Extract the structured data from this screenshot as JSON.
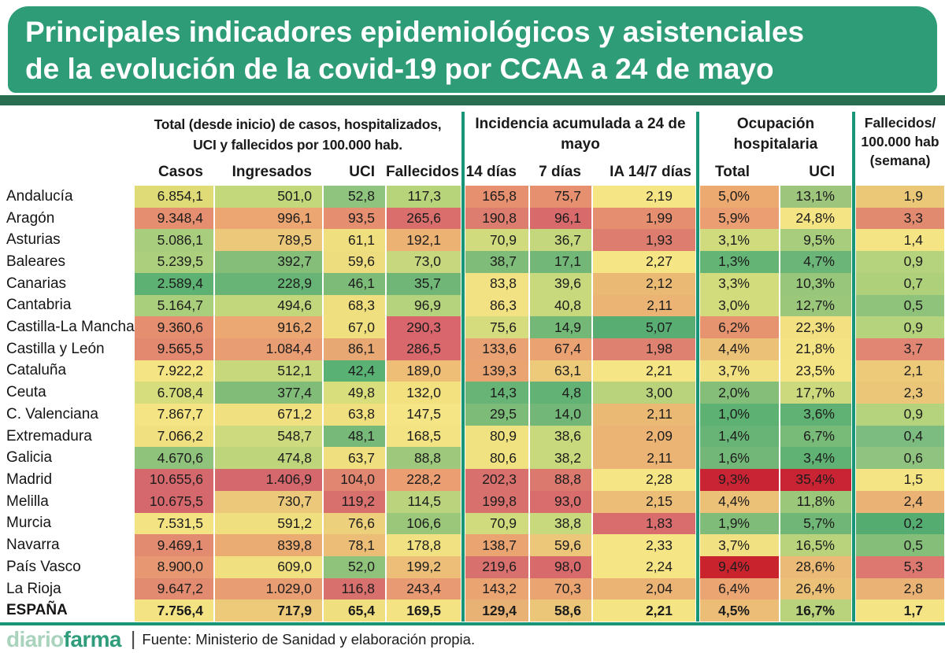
{
  "title": {
    "line1": "Principales indicadores epidemiológicos y asistenciales",
    "line2": "de la evolución de la covid-19 por CCAA a 24 de mayo"
  },
  "colors": {
    "banner": "#2f9c78",
    "stripe": "#2a6e52",
    "divider": "#189476",
    "heat_red": "#c92434",
    "heat_yellow": "#f5e584",
    "heat_green": "#5db173"
  },
  "chart_data": {
    "type": "table",
    "title": "Principales indicadores epidemiológicos y asistenciales de la evolución de la covid-19 por CCAA a 24 de mayo",
    "legend_note": "heatmap cells colored red-yellow-green per column",
    "column_groups": [
      {
        "lines": [
          "Total (desde inicio) de casos, hospitalizados,",
          "UCI y fallecidos por 100.000 hab."
        ]
      },
      {
        "lines": [
          "Incidencia acumulada a 24 de",
          "mayo"
        ]
      },
      {
        "lines": [
          "Ocupación",
          "hospitalaria"
        ]
      },
      {
        "lines": [
          "Fallecidos/",
          "100.000 hab",
          "(semana)"
        ]
      }
    ],
    "columns": [
      "Casos",
      "Ingresados",
      "UCI",
      "Fallecidos",
      "14 días",
      "7 días",
      "IA 14/7 días",
      "Total",
      "UCI"
    ],
    "rows": [
      {
        "name": "Andalucía",
        "bold": false,
        "values": [
          "6.854,1",
          "501,0",
          "52,8",
          "117,3",
          "165,8",
          "75,7",
          "2,19",
          "5,0%",
          "13,1%",
          "1,9"
        ],
        "colors": [
          "#dfdc78",
          "#c3d87b",
          "#8ec47e",
          "#b8d47b",
          "#e69070",
          "#e69070",
          "#f5e584",
          "#edaa70",
          "#9dc57c",
          "#eac878"
        ]
      },
      {
        "name": "Aragón",
        "bold": false,
        "values": [
          "9.348,4",
          "996,1",
          "93,5",
          "265,6",
          "190,8",
          "96,1",
          "1,99",
          "5,9%",
          "24,8%",
          "3,3"
        ],
        "colors": [
          "#e58f70",
          "#eca672",
          "#e58f70",
          "#d96e6d",
          "#dd7d6f",
          "#d96a6c",
          "#e58f70",
          "#eb9e71",
          "#f4e484",
          "#e28a70"
        ]
      },
      {
        "name": "Asturias",
        "bold": false,
        "values": [
          "5.086,1",
          "789,5",
          "61,1",
          "192,1",
          "70,9",
          "36,7",
          "1,93",
          "3,1%",
          "9,5%",
          "1,4"
        ],
        "colors": [
          "#a7cd7d",
          "#ecc97a",
          "#f0df7e",
          "#ecb274",
          "#cfdb7d",
          "#c4d77c",
          "#dd7d6f",
          "#cfdb7d",
          "#a7cd7d",
          "#f4e484"
        ]
      },
      {
        "name": "Baleares",
        "bold": false,
        "values": [
          "5.239,5",
          "392,7",
          "59,6",
          "73,0",
          "38,7",
          "17,1",
          "2,27",
          "1,3%",
          "4,7%",
          "0,9"
        ],
        "colors": [
          "#abcf7c",
          "#85be79",
          "#eedd7e",
          "#c6d77d",
          "#7fbc79",
          "#72b777",
          "#f5e584",
          "#64b476",
          "#6ab577",
          "#b5d27c"
        ]
      },
      {
        "name": "Canarias",
        "bold": false,
        "values": [
          "2.589,4",
          "228,9",
          "46,1",
          "35,7",
          "83,8",
          "39,6",
          "2,12",
          "3,3%",
          "10,3%",
          "0,7"
        ],
        "colors": [
          "#5db173",
          "#68b476",
          "#7cbb78",
          "#6fb677",
          "#f2e283",
          "#c8d87c",
          "#eaba75",
          "#d3dc7d",
          "#98c67b",
          "#aed07b"
        ]
      },
      {
        "name": "Cantabria",
        "bold": false,
        "values": [
          "5.164,7",
          "494,6",
          "68,3",
          "96,9",
          "86,3",
          "40,8",
          "2,11",
          "3,0%",
          "12,7%",
          "0,5"
        ],
        "colors": [
          "#a9ce7c",
          "#c2d67c",
          "#f0df7e",
          "#b5d27c",
          "#f2e283",
          "#c8d87c",
          "#ebb374",
          "#d3dc7d",
          "#9bc77b",
          "#8fc27a"
        ]
      },
      {
        "name": "Castilla-La Mancha",
        "bold": false,
        "values": [
          "9.360,6",
          "916,2",
          "67,0",
          "290,3",
          "75,6",
          "14,9",
          "5,07",
          "6,2%",
          "22,3%",
          "0,9"
        ],
        "colors": [
          "#e58f70",
          "#eba872",
          "#f0df7e",
          "#d8666c",
          "#d5dc7d",
          "#74b878",
          "#58ae72",
          "#e6946f",
          "#f3e081",
          "#b5d27c"
        ]
      },
      {
        "name": "Castilla y León",
        "bold": false,
        "values": [
          "9.565,5",
          "1.084,4",
          "86,1",
          "286,5",
          "133,6",
          "67,4",
          "1,98",
          "4,4%",
          "21,8%",
          "3,7"
        ],
        "colors": [
          "#e3896f",
          "#e89d72",
          "#e8a873",
          "#d8686c",
          "#e9a273",
          "#eaa273",
          "#df8170",
          "#ebc077",
          "#f3e383",
          "#e18672"
        ]
      },
      {
        "name": "Cataluña",
        "bold": false,
        "values": [
          "7.922,2",
          "512,1",
          "42,4",
          "189,0",
          "139,3",
          "63,1",
          "2,21",
          "3,7%",
          "23,5%",
          "2,1"
        ],
        "colors": [
          "#f4e483",
          "#c6d77c",
          "#59b174",
          "#eebd76",
          "#e9a472",
          "#ecca7a",
          "#f5e584",
          "#f2e182",
          "#f4e484",
          "#ecca7a"
        ]
      },
      {
        "name": "Ceuta",
        "bold": false,
        "values": [
          "6.708,4",
          "377,4",
          "49,8",
          "132,0",
          "14,3",
          "4,8",
          "3,00",
          "2,0%",
          "17,7%",
          "2,3"
        ],
        "colors": [
          "#d6dd7d",
          "#81bd79",
          "#d9de7c",
          "#f3e07e",
          "#68b476",
          "#63b275",
          "#b9d37c",
          "#85be79",
          "#cdd97d",
          "#ebc679"
        ]
      },
      {
        "name": "C. Valenciana",
        "bold": false,
        "values": [
          "7.867,7",
          "671,2",
          "63,8",
          "147,5",
          "29,5",
          "14,0",
          "2,11",
          "1,0%",
          "3,6%",
          "0,9"
        ],
        "colors": [
          "#f4e483",
          "#f1e080",
          "#f0df7e",
          "#f5e584",
          "#7cbb78",
          "#72b777",
          "#eaba75",
          "#5db173",
          "#60b274",
          "#b5d27c"
        ]
      },
      {
        "name": "Extremadura",
        "bold": false,
        "values": [
          "7.066,2",
          "548,7",
          "48,1",
          "168,5",
          "80,9",
          "38,6",
          "2,09",
          "1,4%",
          "6,7%",
          "0,4"
        ],
        "colors": [
          "#f1e080",
          "#cdda7d",
          "#77b978",
          "#f3e383",
          "#f0e181",
          "#c8d87c",
          "#ebb374",
          "#68b476",
          "#78ba78",
          "#7cbc80"
        ]
      },
      {
        "name": "Galicia",
        "bold": false,
        "values": [
          "4.670,6",
          "474,8",
          "63,7",
          "88,8",
          "80,6",
          "38,2",
          "2,11",
          "1,6%",
          "3,4%",
          "0,6"
        ],
        "colors": [
          "#8fc27a",
          "#bfd57c",
          "#f0df7e",
          "#9ec87b",
          "#f0e181",
          "#c8d87c",
          "#ebb374",
          "#72b777",
          "#5fb174",
          "#90c37f"
        ]
      },
      {
        "name": "Madrid",
        "bold": false,
        "values": [
          "10.655,6",
          "1.406,9",
          "104,0",
          "228,2",
          "202,3",
          "88,8",
          "2,28",
          "9,3%",
          "35,4%",
          "1,5"
        ],
        "colors": [
          "#d5686c",
          "#d5686c",
          "#e18670",
          "#eb9e71",
          "#d8706e",
          "#dc796f",
          "#f5e584",
          "#c92434",
          "#c92434",
          "#f4e483"
        ]
      },
      {
        "name": "Melilla",
        "bold": false,
        "values": [
          "10.675,5",
          "730,7",
          "119,2",
          "114,5",
          "199,8",
          "93,0",
          "2,15",
          "4,4%",
          "11,8%",
          "2,4"
        ],
        "colors": [
          "#d5686c",
          "#ecc97a",
          "#d8706e",
          "#bad37c",
          "#d8706e",
          "#d96d6d",
          "#ebbd77",
          "#ebc077",
          "#9bc77b",
          "#eab274"
        ]
      },
      {
        "name": "Murcia",
        "bold": false,
        "values": [
          "7.531,5",
          "591,2",
          "76,6",
          "106,6",
          "70,9",
          "38,8",
          "1,83",
          "1,9%",
          "5,7%",
          "0,2"
        ],
        "colors": [
          "#f3e383",
          "#f0df7e",
          "#edd07b",
          "#9bc77b",
          "#cfdb7d",
          "#c8d87c",
          "#d96d6d",
          "#7fbc79",
          "#70b677",
          "#55ac71"
        ]
      },
      {
        "name": "Navarra",
        "bold": false,
        "values": [
          "9.469,1",
          "839,8",
          "78,1",
          "178,8",
          "138,7",
          "59,6",
          "2,33",
          "3,7%",
          "16,5%",
          "0,5"
        ],
        "colors": [
          "#e28b70",
          "#ebac73",
          "#ebbd77",
          "#f2e182",
          "#e9a472",
          "#ecc77a",
          "#f5e584",
          "#f2e182",
          "#b9d37c",
          "#85be79"
        ]
      },
      {
        "name": "País Vasco",
        "bold": false,
        "values": [
          "8.900,0",
          "609,0",
          "52,0",
          "199,2",
          "219,6",
          "98,0",
          "2,24",
          "9,4%",
          "28,6%",
          "5,3"
        ],
        "colors": [
          "#e79771",
          "#f1e080",
          "#8fc27a",
          "#ecbe77",
          "#d8706e",
          "#d96a6c",
          "#f5e584",
          "#c9242e",
          "#eaba76",
          "#dc7870"
        ]
      },
      {
        "name": "La Rioja",
        "bold": false,
        "values": [
          "9.647,2",
          "1.029,0",
          "116,8",
          "243,4",
          "143,2",
          "70,3",
          "2,04",
          "6,4%",
          "26,4%",
          "2,8"
        ],
        "colors": [
          "#e28b70",
          "#e89d72",
          "#d8706e",
          "#e89a72",
          "#e9a472",
          "#e9a472",
          "#ebb374",
          "#eaa573",
          "#ebc077",
          "#eab274"
        ]
      },
      {
        "name": "ESPAÑA",
        "bold": true,
        "values": [
          "7.756,4",
          "717,9",
          "65,4",
          "169,5",
          "129,4",
          "58,6",
          "2,21",
          "4,5%",
          "16,7%",
          "1,7"
        ],
        "colors": [
          "#f3e383",
          "#ecca7a",
          "#f0df7e",
          "#f3e383",
          "#e9b275",
          "#ebc678",
          "#f4e484",
          "#ebbd77",
          "#b9d37c",
          "#f4e483"
        ]
      }
    ]
  },
  "footer": {
    "logo_light": "diario",
    "logo_bold": "farma",
    "separator": "|",
    "source": "Fuente: Ministerio de Sanidad y elaboración propia."
  }
}
